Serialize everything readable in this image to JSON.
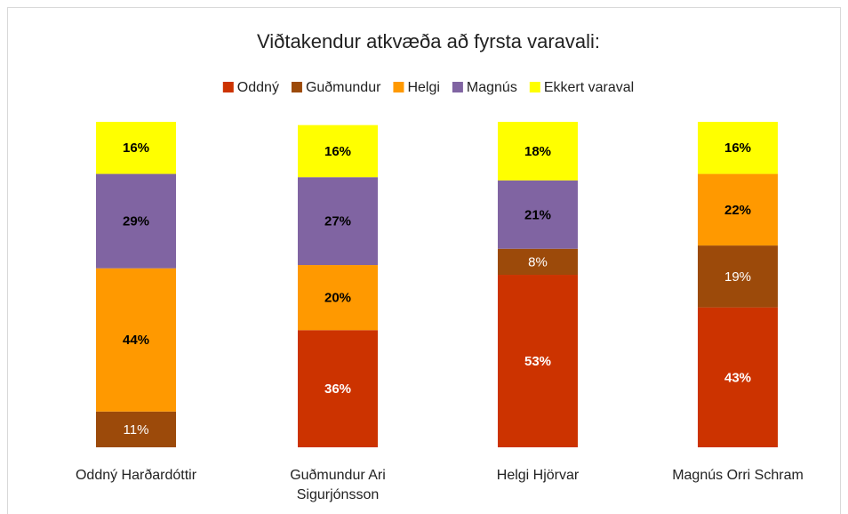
{
  "chart_data": {
    "type": "stacked_bar",
    "title": "Viðtakendur atkvæða að fyrsta varavali:",
    "categories": [
      "Oddný Harðardóttir",
      "Guðmundur Ari Sigurjónsson",
      "Helgi Hjörvar",
      "Magnús Orri Schram"
    ],
    "series": [
      {
        "name": "Oddný",
        "color": "#cc3300",
        "values": [
          null,
          36,
          53,
          43
        ],
        "value_labels": [
          null,
          "36%",
          "53%",
          "43%"
        ]
      },
      {
        "name": "Guðmundur",
        "color": "#9c4a0a",
        "values": [
          11,
          null,
          8,
          19
        ],
        "value_labels": [
          "11%",
          null,
          "8%",
          "19%"
        ]
      },
      {
        "name": "Helgi",
        "color": "#ff9900",
        "values": [
          44,
          20,
          null,
          22
        ],
        "value_labels": [
          "44%",
          "20%",
          null,
          "22%"
        ]
      },
      {
        "name": "Magnús",
        "color": "#8064a2",
        "values": [
          29,
          27,
          21,
          null
        ],
        "value_labels": [
          "29%",
          "27%",
          "21%",
          null
        ]
      },
      {
        "name": "Ekkert varaval",
        "color": "#ffff00",
        "values": [
          16,
          16,
          18,
          16
        ],
        "value_labels": [
          "16%",
          "16%",
          "18%",
          "16%"
        ]
      }
    ],
    "legend": "top"
  }
}
